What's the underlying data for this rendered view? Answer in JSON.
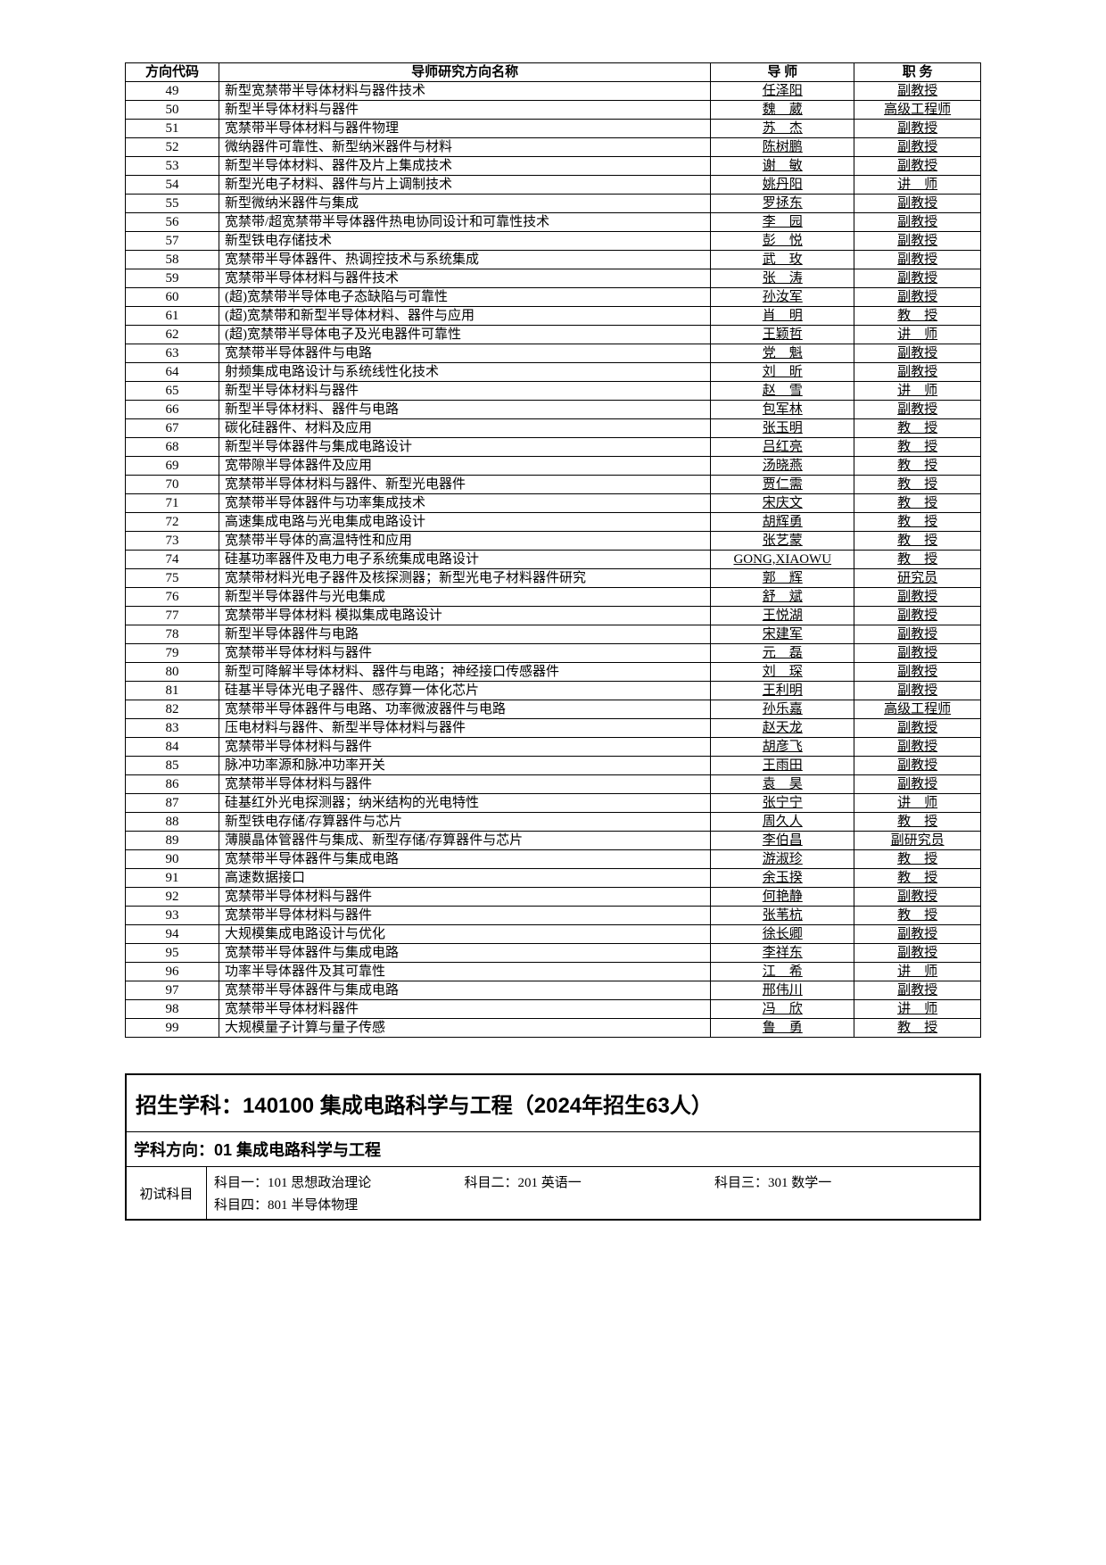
{
  "table": {
    "headers": [
      "方向代码",
      "导师研究方向名称",
      "导 师",
      "职 务"
    ],
    "rows": [
      {
        "code": "49",
        "research": "新型宽禁带半导体材料与器件技术",
        "advisor": "任泽阳",
        "title": "副教授"
      },
      {
        "code": "50",
        "research": "新型半导体材料与器件",
        "advisor": "魏　葳",
        "title": "高级工程师"
      },
      {
        "code": "51",
        "research": "宽禁带半导体材料与器件物理",
        "advisor": "苏　杰",
        "title": "副教授"
      },
      {
        "code": "52",
        "research": "微纳器件可靠性、新型纳米器件与材料",
        "advisor": "陈树鹏",
        "title": "副教授"
      },
      {
        "code": "53",
        "research": "新型半导体材料、器件及片上集成技术",
        "advisor": "谢　敏",
        "title": "副教授"
      },
      {
        "code": "54",
        "research": "新型光电子材料、器件与片上调制技术",
        "advisor": "姚丹阳",
        "title": "讲　师"
      },
      {
        "code": "55",
        "research": "新型微纳米器件与集成",
        "advisor": "罗拯东",
        "title": "副教授"
      },
      {
        "code": "56",
        "research": "宽禁带/超宽禁带半导体器件热电协同设计和可靠性技术",
        "advisor": "李　园",
        "title": "副教授"
      },
      {
        "code": "57",
        "research": "新型铁电存储技术",
        "advisor": "彭　悦",
        "title": "副教授"
      },
      {
        "code": "58",
        "research": "宽禁带半导体器件、热调控技术与系统集成",
        "advisor": "武　玫",
        "title": "副教授"
      },
      {
        "code": "59",
        "research": "宽禁带半导体材料与器件技术",
        "advisor": "张　涛",
        "title": "副教授"
      },
      {
        "code": "60",
        "research": "(超)宽禁带半导体电子态缺陷与可靠性",
        "advisor": "孙汝军",
        "title": "副教授"
      },
      {
        "code": "61",
        "research": "(超)宽禁带和新型半导体材料、器件与应用",
        "advisor": "肖　明",
        "title": "教　授"
      },
      {
        "code": "62",
        "research": "(超)宽禁带半导体电子及光电器件可靠性",
        "advisor": "王颖哲",
        "title": "讲　师"
      },
      {
        "code": "63",
        "research": "宽禁带半导体器件与电路",
        "advisor": "党　魁",
        "title": "副教授"
      },
      {
        "code": "64",
        "research": "射频集成电路设计与系统线性化技术",
        "advisor": "刘　昕",
        "title": "副教授"
      },
      {
        "code": "65",
        "research": "新型半导体材料与器件",
        "advisor": "赵　雪",
        "title": "讲　师"
      },
      {
        "code": "66",
        "research": "新型半导体材料、器件与电路",
        "advisor": "包军林",
        "title": "副教授"
      },
      {
        "code": "67",
        "research": "碳化硅器件、材料及应用",
        "advisor": "张玉明",
        "title": "教　授"
      },
      {
        "code": "68",
        "research": "新型半导体器件与集成电路设计",
        "advisor": "吕红亮",
        "title": "教　授"
      },
      {
        "code": "69",
        "research": "宽带隙半导体器件及应用",
        "advisor": "汤晓燕",
        "title": "教　授"
      },
      {
        "code": "70",
        "research": "宽禁带半导体材料与器件、新型光电器件",
        "advisor": "贾仁需",
        "title": "教　授"
      },
      {
        "code": "71",
        "research": "宽禁带半导体器件与功率集成技术",
        "advisor": "宋庆文",
        "title": "教　授"
      },
      {
        "code": "72",
        "research": "高速集成电路与光电集成电路设计",
        "advisor": "胡辉勇",
        "title": "教　授"
      },
      {
        "code": "73",
        "research": "宽禁带半导体的高温特性和应用",
        "advisor": "张艺蒙",
        "title": "教　授"
      },
      {
        "code": "74",
        "research": "硅基功率器件及电力电子系统集成电路设计",
        "advisor": "GONG,XIAOWU",
        "title": "教　授"
      },
      {
        "code": "75",
        "research": "宽禁带材料光电子器件及核探测器；新型光电子材料器件研究",
        "advisor": "郭　辉",
        "title": "研究员"
      },
      {
        "code": "76",
        "research": "新型半导体器件与光电集成",
        "advisor": "舒　斌",
        "title": "副教授"
      },
      {
        "code": "77",
        "research": "宽禁带半导体材料 模拟集成电路设计",
        "advisor": "王悦湖",
        "title": "副教授"
      },
      {
        "code": "78",
        "research": "新型半导体器件与电路",
        "advisor": "宋建军",
        "title": "副教授"
      },
      {
        "code": "79",
        "research": "宽禁带半导体材料与器件",
        "advisor": "元　磊",
        "title": "副教授"
      },
      {
        "code": "80",
        "research": "新型可降解半导体材料、器件与电路；神经接口传感器件",
        "advisor": "刘　琛",
        "title": "副教授"
      },
      {
        "code": "81",
        "research": "硅基半导体光电子器件、感存算一体化芯片",
        "advisor": "王利明",
        "title": "副教授"
      },
      {
        "code": "82",
        "research": "宽禁带半导体器件与电路、功率微波器件与电路",
        "advisor": "孙乐嘉",
        "title": "高级工程师"
      },
      {
        "code": "83",
        "research": "压电材料与器件、新型半导体材料与器件",
        "advisor": "赵天龙",
        "title": "副教授"
      },
      {
        "code": "84",
        "research": "宽禁带半导体材料与器件",
        "advisor": "胡彦飞",
        "title": "副教授"
      },
      {
        "code": "85",
        "research": "脉冲功率源和脉冲功率开关",
        "advisor": "王雨田",
        "title": "副教授"
      },
      {
        "code": "86",
        "research": "宽禁带半导体材料与器件",
        "advisor": "袁　昊",
        "title": "副教授"
      },
      {
        "code": "87",
        "research": "硅基红外光电探测器；纳米结构的光电特性",
        "advisor": "张宁宁",
        "title": "讲　师"
      },
      {
        "code": "88",
        "research": "新型铁电存储/存算器件与芯片",
        "advisor": "周久人",
        "title": "教　授"
      },
      {
        "code": "89",
        "research": "薄膜晶体管器件与集成、新型存储/存算器件与芯片",
        "advisor": "李伯昌",
        "title": "副研究员"
      },
      {
        "code": "90",
        "research": "宽禁带半导体器件与集成电路",
        "advisor": "游淑珍",
        "title": "教　授"
      },
      {
        "code": "91",
        "research": "高速数据接口",
        "advisor": "余玉揆",
        "title": "教　授"
      },
      {
        "code": "92",
        "research": "宽禁带半导体材料与器件",
        "advisor": "何艳静",
        "title": "副教授"
      },
      {
        "code": "93",
        "research": "宽禁带半导体材料与器件",
        "advisor": "张苇杭",
        "title": "教　授"
      },
      {
        "code": "94",
        "research": "大规模集成电路设计与优化",
        "advisor": "徐长卿",
        "title": "副教授"
      },
      {
        "code": "95",
        "research": "宽禁带半导体器件与集成电路",
        "advisor": "李祥东",
        "title": "副教授"
      },
      {
        "code": "96",
        "research": "功率半导体器件及其可靠性",
        "advisor": "江　希",
        "title": "讲　师"
      },
      {
        "code": "97",
        "research": "宽禁带半导体器件与集成电路",
        "advisor": "邢伟川",
        "title": "副教授"
      },
      {
        "code": "98",
        "research": "宽禁带半导体材料器件",
        "advisor": "冯　欣",
        "title": "讲　师"
      },
      {
        "code": "99",
        "research": "大规模量子计算与量子传感",
        "advisor": "鲁　勇",
        "title": "教　授"
      }
    ]
  },
  "program": {
    "title": "招生学科：140100 集成电路科学与工程（2024年招生63人）",
    "direction": "学科方向：01 集成电路科学与工程",
    "exam_label": "初试科目",
    "exams": [
      "科目一：101 思想政治理论",
      "科目二：201 英语一",
      "科目三：301 数学一",
      "科目四：801 半导体物理"
    ]
  },
  "colors": {
    "border": "#000000",
    "background": "#ffffff",
    "text": "#000000"
  }
}
